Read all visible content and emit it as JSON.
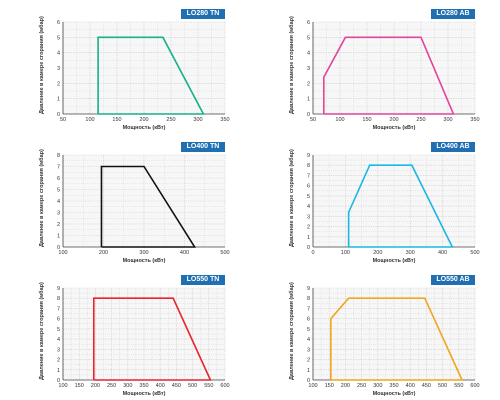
{
  "colors": {
    "badge": "#1f6fb2",
    "grid": "#cfcfcf",
    "plot_bg": "#f7f7f7",
    "axis": "#444444"
  },
  "chart_data": [
    {
      "type": "area",
      "title": "LO280 TN",
      "xlabel": "Мощность (кВт)",
      "ylabel": "Давление в камере сгорания (мбар)",
      "xlim": [
        50,
        350
      ],
      "ylim": [
        0,
        6
      ],
      "xticks": [
        50,
        100,
        150,
        200,
        250,
        300,
        350
      ],
      "yticks": [
        0,
        1,
        2,
        3,
        4,
        5,
        6
      ],
      "grid": true,
      "color": "#16b08a",
      "x": [
        115,
        115,
        235,
        310,
        115
      ],
      "y": [
        0,
        5,
        5,
        0,
        0
      ]
    },
    {
      "type": "area",
      "title": "LO280 AB",
      "xlabel": "Мощность (кВт)",
      "ylabel": "Давление в камере сгорания (мбар)",
      "xlim": [
        50,
        350
      ],
      "ylim": [
        0,
        6
      ],
      "xticks": [
        50,
        100,
        150,
        200,
        250,
        300,
        350
      ],
      "yticks": [
        0,
        1,
        2,
        3,
        4,
        5,
        6
      ],
      "grid": true,
      "color": "#e0459a",
      "x": [
        70,
        70,
        110,
        250,
        310,
        70
      ],
      "y": [
        0,
        2.4,
        5,
        5,
        0,
        0
      ]
    },
    {
      "type": "area",
      "title": "LO400 TN",
      "xlabel": "Мощность (кВт)",
      "ylabel": "Давление в камере сгорания (мбар)",
      "xlim": [
        100,
        500
      ],
      "ylim": [
        0,
        8
      ],
      "xticks": [
        100,
        200,
        300,
        400,
        500
      ],
      "yticks": [
        0,
        1,
        2,
        3,
        4,
        5,
        6,
        7,
        8
      ],
      "grid": true,
      "color": "#111111",
      "x": [
        195,
        195,
        300,
        425,
        195
      ],
      "y": [
        0,
        7,
        7,
        0,
        0
      ]
    },
    {
      "type": "area",
      "title": "LO400 AB",
      "xlabel": "Мощность (кВт)",
      "ylabel": "Давление в камере сгорания (мбар)",
      "xlim": [
        0,
        500
      ],
      "ylim": [
        0,
        9
      ],
      "xticks": [
        0,
        100,
        200,
        300,
        400,
        500
      ],
      "yticks": [
        0,
        1,
        2,
        3,
        4,
        5,
        6,
        7,
        8,
        9
      ],
      "grid": true,
      "color": "#1ab8e6",
      "x": [
        110,
        110,
        175,
        305,
        430,
        110
      ],
      "y": [
        0,
        3.4,
        8,
        8,
        0,
        0
      ]
    },
    {
      "type": "area",
      "title": "LO550 TN",
      "xlabel": "Мощность (кВт)",
      "ylabel": "Давление в камере сгорания (мбар)",
      "xlim": [
        100,
        600
      ],
      "ylim": [
        0,
        9
      ],
      "xticks": [
        100,
        150,
        200,
        250,
        300,
        350,
        400,
        450,
        500,
        550,
        600
      ],
      "yticks": [
        0,
        1,
        2,
        3,
        4,
        5,
        6,
        7,
        8,
        9
      ],
      "grid": true,
      "color": "#e8232e",
      "x": [
        195,
        195,
        440,
        555,
        195
      ],
      "y": [
        0,
        8,
        8,
        0,
        0
      ]
    },
    {
      "type": "area",
      "title": "LO550 AB",
      "xlabel": "Мощность (кВт)",
      "ylabel": "Давление в камере сгорания (мбар)",
      "xlim": [
        100,
        600
      ],
      "ylim": [
        0,
        9
      ],
      "xticks": [
        100,
        150,
        200,
        250,
        300,
        350,
        400,
        450,
        500,
        550,
        600
      ],
      "yticks": [
        0,
        1,
        2,
        3,
        4,
        5,
        6,
        7,
        8,
        9
      ],
      "grid": true,
      "color": "#f2a51f",
      "x": [
        155,
        155,
        210,
        445,
        560,
        155
      ],
      "y": [
        0,
        6,
        8,
        8,
        0,
        0
      ]
    }
  ]
}
